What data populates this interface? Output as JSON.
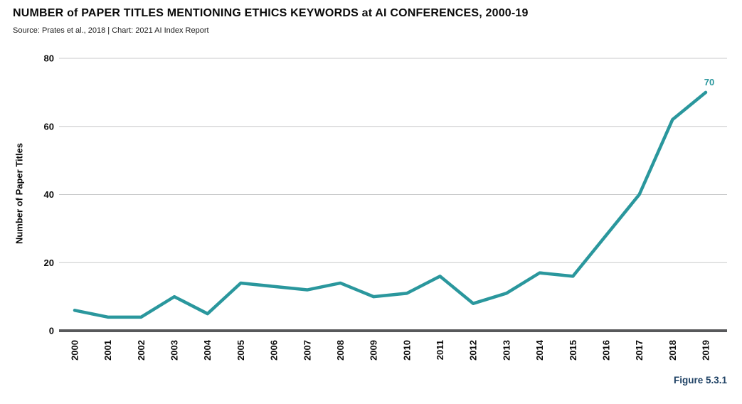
{
  "figure_caption": "Figure 5.3.1",
  "colors": {
    "line": "#2A979D",
    "annotation": "#2A979D",
    "caption": "#1E4164",
    "axis": "#58595B",
    "gridline": "#C9CACB",
    "text": "#0B0B0B"
  },
  "chart_data": {
    "type": "line",
    "title": "NUMBER of PAPER TITLES MENTIONING ETHICS KEYWORDS at AI CONFERENCES, 2000-19",
    "subtitle": "Source: Prates et al., 2018 | Chart: 2021 AI Index Report",
    "x": [
      "2000",
      "2001",
      "2002",
      "2003",
      "2004",
      "2005",
      "2006",
      "2007",
      "2008",
      "2009",
      "2010",
      "2011",
      "2012",
      "2013",
      "2014",
      "2015",
      "2016",
      "2017",
      "2018",
      "2019"
    ],
    "series": [
      {
        "name": "Number of Paper Titles",
        "values": [
          6,
          4,
          4,
          10,
          5,
          14,
          13,
          12,
          14,
          10,
          11,
          16,
          8,
          11,
          17,
          16,
          28,
          40,
          62,
          70
        ]
      }
    ],
    "xlabel": "",
    "ylabel": "Number of Paper Titles",
    "ylim": [
      0,
      80
    ],
    "yticks": [
      0,
      20,
      40,
      60,
      80
    ],
    "grid": true,
    "legend_position": "none",
    "annotations": [
      {
        "x": "2019",
        "value": 70,
        "label": "70"
      }
    ]
  }
}
